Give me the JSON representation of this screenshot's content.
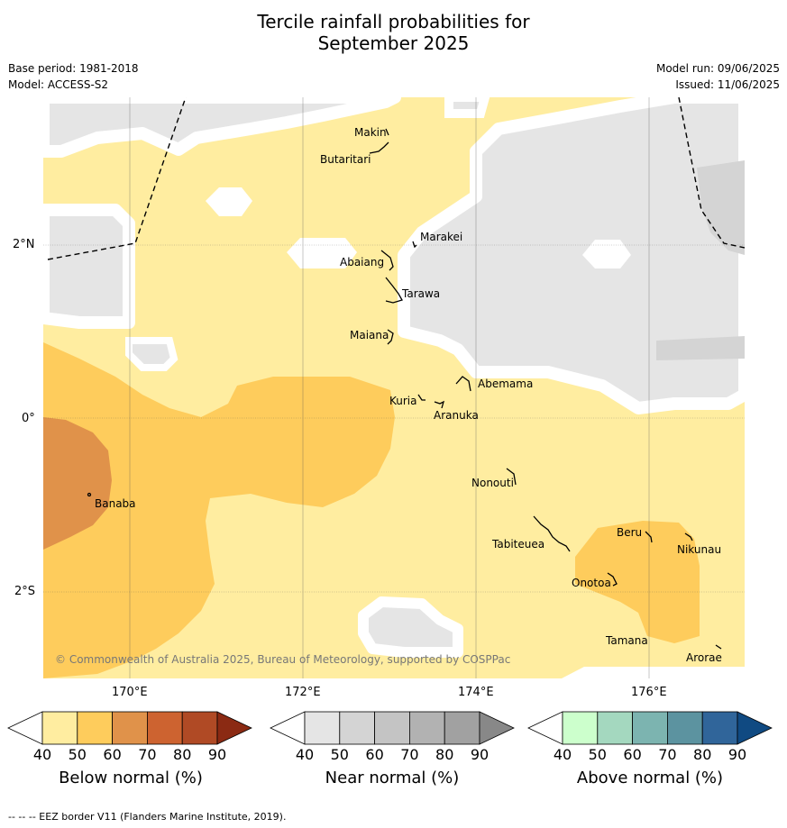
{
  "title_line1": "Tercile rainfall probabilities for",
  "title_line2": "September 2025",
  "base_period": "Base period: 1981-2018",
  "model": "Model: ACCESS-S2",
  "model_run": "Model run: 09/06/2025",
  "issued": "Issued: 11/06/2025",
  "lat_labels": [
    "2°N",
    "0°",
    "2°S"
  ],
  "lon_labels": [
    "170°E",
    "172°E",
    "174°E",
    "176°E"
  ],
  "copyright": "© Commonwealth of Australia 2025, Bureau of Meteorology, supported by COSPPac",
  "places": [
    "Makin",
    "Butaritari",
    "Marakei",
    "Abaiang",
    "Tarawa",
    "Maiana",
    "Abemama",
    "Kuria",
    "Aranuka",
    "Nonouti",
    "Banaba",
    "Beru",
    "Tabiteuea",
    "Nikunau",
    "Onotoa",
    "Tamana",
    "Arorae"
  ],
  "colorbars": [
    {
      "title": "Below normal (%)",
      "ticks": [
        "40",
        "50",
        "60",
        "70",
        "80",
        "90"
      ],
      "colors": [
        "#ffeda0",
        "#fecc5c",
        "#e0924a",
        "#cd6330",
        "#b04a25",
        "#8b2a13"
      ]
    },
    {
      "title": "Near normal (%)",
      "ticks": [
        "40",
        "50",
        "60",
        "70",
        "80",
        "90"
      ],
      "colors": [
        "#e5e5e5",
        "#d4d4d4",
        "#c4c4c4",
        "#b2b2b2",
        "#a1a1a1",
        "#888888"
      ]
    },
    {
      "title": "Above normal (%)",
      "ticks": [
        "40",
        "50",
        "60",
        "70",
        "80",
        "90"
      ],
      "colors": [
        "#ccffcc",
        "#a4d8bf",
        "#7cb4b0",
        "#5c93a0",
        "#30659a",
        "#104a82"
      ]
    }
  ],
  "footer": "--  --  -- EEZ border V11 (Flanders Marine Institute, 2019).",
  "colors": {
    "below_40": "#ffeda0",
    "below_50": "#fecc5c",
    "below_60": "#e0924a",
    "near_40": "#e5e5e5",
    "near_50": "#d4d4d4"
  }
}
